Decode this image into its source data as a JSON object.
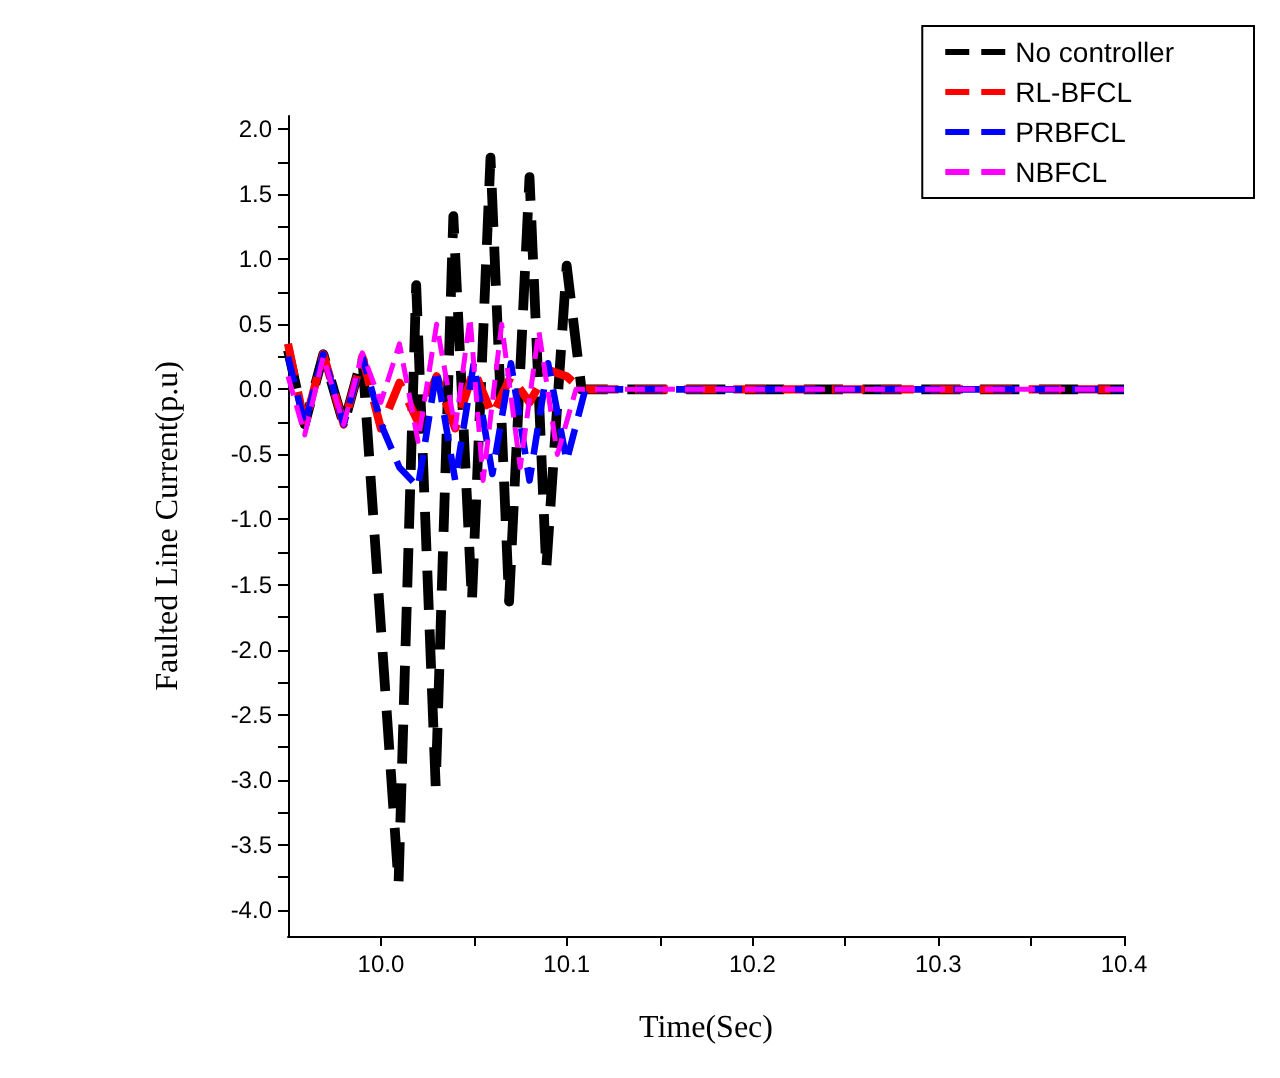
{
  "chart_data": {
    "type": "line",
    "xlabel": "Time(Sec)",
    "ylabel": "Faulted Line Current(p.u)",
    "xlim": [
      9.95,
      10.4
    ],
    "ylim": [
      -4.2,
      2.1
    ],
    "xticks": [
      {
        "value": 10.0,
        "label": "10.0"
      },
      {
        "value": 10.05,
        "label": null
      },
      {
        "value": 10.1,
        "label": "10.1"
      },
      {
        "value": 10.15,
        "label": null
      },
      {
        "value": 10.2,
        "label": "10.2"
      },
      {
        "value": 10.25,
        "label": null
      },
      {
        "value": 10.3,
        "label": "10.3"
      },
      {
        "value": 10.35,
        "label": null
      },
      {
        "value": 10.4,
        "label": "10.4"
      }
    ],
    "yticks": [
      {
        "value": -4,
        "label": "-4.0"
      },
      {
        "value": -3.75,
        "label": null
      },
      {
        "value": -3.5,
        "label": "-3.5"
      },
      {
        "value": -3.25,
        "label": null
      },
      {
        "value": -3,
        "label": "-3.0"
      },
      {
        "value": -2.75,
        "label": null
      },
      {
        "value": -2.5,
        "label": "-2.5"
      },
      {
        "value": -2.25,
        "label": null
      },
      {
        "value": -2,
        "label": "-2.0"
      },
      {
        "value": -1.75,
        "label": null
      },
      {
        "value": -1.5,
        "label": "-1.5"
      },
      {
        "value": -1.25,
        "label": null
      },
      {
        "value": -1,
        "label": "-1.0"
      },
      {
        "value": -0.75,
        "label": null
      },
      {
        "value": -0.5,
        "label": "-0.5"
      },
      {
        "value": -0.25,
        "label": null
      },
      {
        "value": 0,
        "label": "0.0"
      },
      {
        "value": 0.25,
        "label": null
      },
      {
        "value": 0.5,
        "label": "0.5"
      },
      {
        "value": 0.75,
        "label": null
      },
      {
        "value": 1,
        "label": "1.0"
      },
      {
        "value": 1.25,
        "label": null
      },
      {
        "value": 1.5,
        "label": "1.5"
      },
      {
        "value": 1.75,
        "label": null
      },
      {
        "value": 2,
        "label": "2.0"
      }
    ],
    "grid": false,
    "legend": "top right",
    "marker": "none",
    "line_style": "dashed",
    "series": [
      {
        "name": "No controller",
        "color": "#000000",
        "x": [
          9.95,
          9.959,
          9.969,
          9.98,
          9.99,
          10.0095,
          10.019,
          10.0295,
          10.039,
          10.049,
          10.059,
          10.069,
          10.08,
          10.089,
          10.1,
          10.108,
          10.4
        ],
        "values": [
          0.3,
          -0.27,
          0.27,
          -0.27,
          0.25,
          -3.8,
          0.8,
          -3.05,
          1.33,
          -1.63,
          1.78,
          -1.63,
          1.63,
          -1.38,
          0.95,
          0,
          0
        ]
      },
      {
        "name": "RL-BFCL",
        "color": "#ff0000",
        "x": [
          9.95,
          9.959,
          9.969,
          9.98,
          9.99,
          10.0,
          10.01,
          10.02,
          10.03,
          10.04,
          10.05,
          10.06,
          10.07,
          10.08,
          10.09,
          10.1,
          10.108,
          10.4
        ],
        "values": [
          0.35,
          -0.27,
          0.27,
          -0.27,
          0.25,
          -0.3,
          0.05,
          -0.25,
          0.1,
          -0.3,
          0.15,
          -0.2,
          0.1,
          -0.1,
          0.15,
          0.1,
          0,
          0
        ]
      },
      {
        "name": "PRBFCL",
        "color": "#0000ff",
        "x": [
          9.95,
          9.959,
          9.969,
          9.98,
          9.99,
          10.001,
          10.01,
          10.02,
          10.03,
          10.04,
          10.05,
          10.06,
          10.07,
          10.08,
          10.09,
          10.1,
          10.11,
          10.4
        ],
        "values": [
          0.25,
          -0.27,
          0.27,
          -0.27,
          0.25,
          -0.3,
          -0.6,
          -0.75,
          0.15,
          -0.7,
          0.2,
          -0.65,
          0.2,
          -0.7,
          0.2,
          -0.55,
          0,
          0
        ]
      },
      {
        "name": "NBFCL",
        "color": "#ff00ff",
        "x": [
          9.95,
          9.959,
          9.969,
          9.98,
          9.99,
          10.0,
          10.01,
          10.02,
          10.03,
          10.04,
          10.048,
          10.055,
          10.065,
          10.075,
          10.085,
          10.095,
          10.105,
          10.4
        ],
        "values": [
          0.1,
          -0.35,
          0.25,
          -0.27,
          0.28,
          -0.1,
          0.35,
          -0.4,
          0.5,
          -0.3,
          0.55,
          -0.7,
          0.5,
          -0.6,
          0.45,
          -0.5,
          0,
          0
        ]
      }
    ]
  }
}
